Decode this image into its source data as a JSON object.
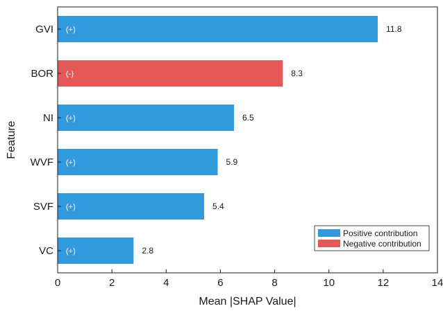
{
  "chart_data": {
    "type": "bar",
    "orientation": "horizontal",
    "categories": [
      "GVI",
      "BOR",
      "NI",
      "WVF",
      "SVF",
      "VC"
    ],
    "values": [
      11.8,
      8.3,
      6.5,
      5.9,
      5.4,
      2.8
    ],
    "value_labels": [
      "11.8",
      "8.3",
      "6.5",
      "5.9",
      "5.4",
      "2.8"
    ],
    "signs": [
      "(+)",
      "(-)",
      "(+)",
      "(+)",
      "(+)",
      "(+)"
    ],
    "contribution": [
      "positive",
      "negative",
      "positive",
      "positive",
      "positive",
      "positive"
    ],
    "xlabel": "Mean |SHAP Value|",
    "ylabel": "Feature",
    "xlim": [
      0,
      14
    ],
    "xticks": [
      0,
      2,
      4,
      6,
      8,
      10,
      12,
      14
    ],
    "grid": false,
    "legend": {
      "placement": "bottom-right",
      "entries": [
        {
          "label": "Positive contribution",
          "color": "#3399DD"
        },
        {
          "label": "Negative contribution",
          "color": "#E45858"
        }
      ]
    },
    "colors": {
      "positive": "#3399DD",
      "negative": "#E45858"
    }
  }
}
